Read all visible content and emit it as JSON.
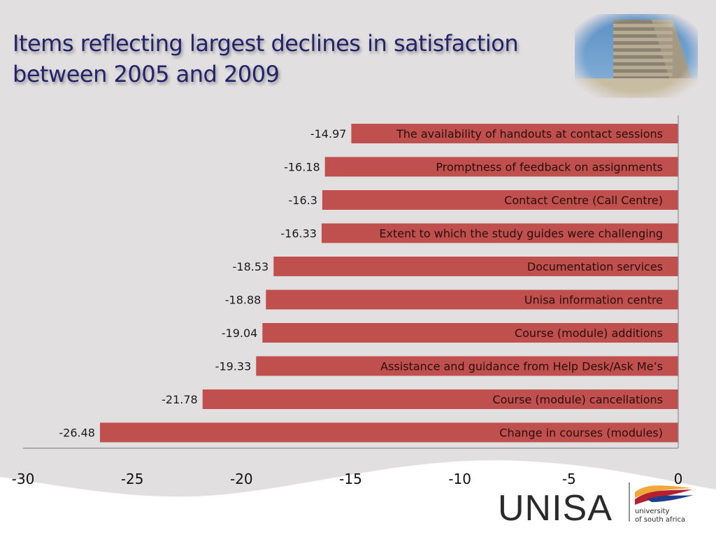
{
  "slide": {
    "title_line1": "Items reflecting largest declines in satisfaction",
    "title_line2": "between 2005 and 2009",
    "photo": "university-building-photo"
  },
  "logo": {
    "wordmark": "UNISA",
    "sub_line1": "university",
    "sub_line2": "of south africa"
  },
  "colors": {
    "bar": "#c0504d",
    "title": "#23236b",
    "axis": "#8c8c8c",
    "background": "#e2dfe1"
  },
  "chart_data": {
    "type": "bar",
    "orientation": "horizontal",
    "title": "Items reflecting largest declines in satisfaction between 2005 and 2009",
    "xlabel": "",
    "ylabel": "",
    "xlim": [
      -30,
      0
    ],
    "x_ticks": [
      "-30",
      "-25",
      "-20",
      "-15",
      "-10",
      "-5",
      "0"
    ],
    "grid": false,
    "legend": "none",
    "categories": [
      "The availability of handouts at contact sessions",
      "Promptness of feedback on assignments",
      "Contact Centre (Call Centre)",
      "Extent to which the study guides were challenging",
      "Documentation services",
      "Unisa information centre",
      "Course (module) additions",
      "Assistance and guidance from Help Desk/Ask Me’s",
      "Course (module) cancellations",
      "Change in courses (modules)"
    ],
    "values": [
      -14.97,
      -16.18,
      -16.3,
      -16.33,
      -18.53,
      -18.88,
      -19.04,
      -19.33,
      -21.78,
      -26.48
    ],
    "value_labels": [
      "-14.97",
      "-16.18",
      "-16.3",
      "-16.33",
      "-18.53",
      "-18.88",
      "-19.04",
      "-19.33",
      "-21.78",
      "-26.48"
    ]
  }
}
